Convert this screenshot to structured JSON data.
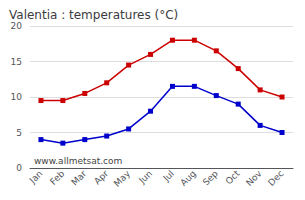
{
  "chart_data": {
    "type": "line",
    "title": "Valentia : temperatures (°C)",
    "categories": [
      "Jan",
      "Feb",
      "Mar",
      "Apr",
      "May",
      "Jun",
      "Jul",
      "Aug",
      "Sep",
      "Oct",
      "Nov",
      "Dec"
    ],
    "series": [
      {
        "color": "#cc0000",
        "marker": "square",
        "values": [
          9.5,
          9.5,
          10.5,
          12.0,
          14.5,
          16.0,
          18.0,
          18.0,
          16.5,
          14.0,
          11.0,
          10.0
        ]
      },
      {
        "color": "#0000cc",
        "marker": "square",
        "values": [
          4.0,
          3.5,
          4.0,
          4.5,
          5.5,
          8.0,
          11.5,
          11.5,
          10.2,
          9.0,
          6.0,
          5.0
        ]
      }
    ],
    "ylim": [
      0,
      20
    ],
    "yticks": [
      0,
      5,
      10,
      15,
      20
    ],
    "grid": true,
    "annotations": [
      "www.allmetsat.com"
    ]
  }
}
